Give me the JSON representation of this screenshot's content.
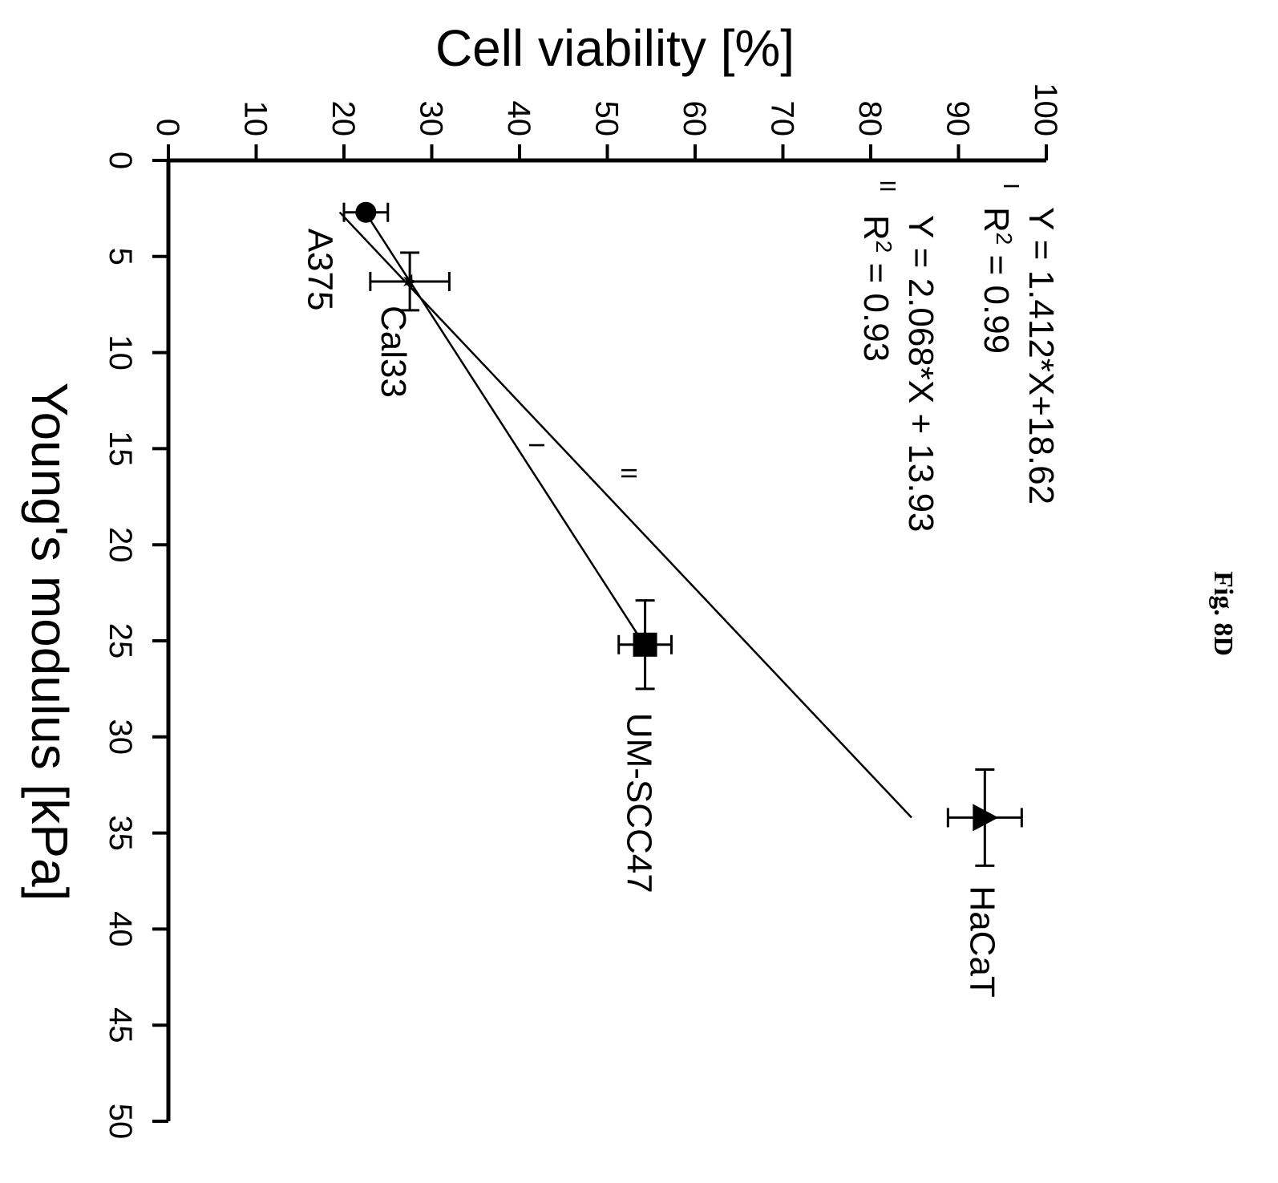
{
  "figure_label": "Fig. 8D",
  "chart_data": {
    "type": "scatter",
    "orientation": "rotated 90° clockwise",
    "xlabel": "Young's modulus [kPa]",
    "ylabel": "Cell viability [%]",
    "xlim": [
      0,
      50
    ],
    "ylim": [
      0,
      100
    ],
    "xticks": [
      "0",
      "5",
      "10",
      "15",
      "20",
      "25",
      "30",
      "35",
      "40",
      "45",
      "50"
    ],
    "yticks": [
      "0",
      "10",
      "20",
      "30",
      "40",
      "50",
      "60",
      "70",
      "80",
      "90",
      "100"
    ],
    "grid": false,
    "points": [
      {
        "label": "A375",
        "x": 2.7,
        "y": 22.5,
        "xerr": 0.0,
        "yerr": 2.5,
        "marker": "circle"
      },
      {
        "label": "Cal33",
        "x": 6.3,
        "y": 27.5,
        "xerr": 1.5,
        "yerr": 4.5,
        "marker": "star"
      },
      {
        "label": "UM-SCC47",
        "x": 25.2,
        "y": 54.3,
        "xerr": 2.3,
        "yerr": 3.0,
        "marker": "square"
      },
      {
        "label": "HaCaT",
        "x": 34.2,
        "y": 93.0,
        "xerr": 2.5,
        "yerr": 4.2,
        "marker": "triangle"
      }
    ],
    "fits": [
      {
        "id": "I",
        "equation": "Y = 1.412*X+18.62",
        "r2_prefix": "R",
        "r2_value": " = 0.99",
        "slope": 1.412,
        "intercept": 18.62,
        "x_range": [
          2.7,
          25.2
        ],
        "style": "solid"
      },
      {
        "id": "II",
        "equation": "Y = 2.068*X + 13.93",
        "r2_prefix": "R",
        "r2_value": " = 0.93",
        "slope": 2.068,
        "intercept": 13.93,
        "x_range": [
          2.7,
          34.2
        ],
        "style": "dotted"
      }
    ]
  }
}
